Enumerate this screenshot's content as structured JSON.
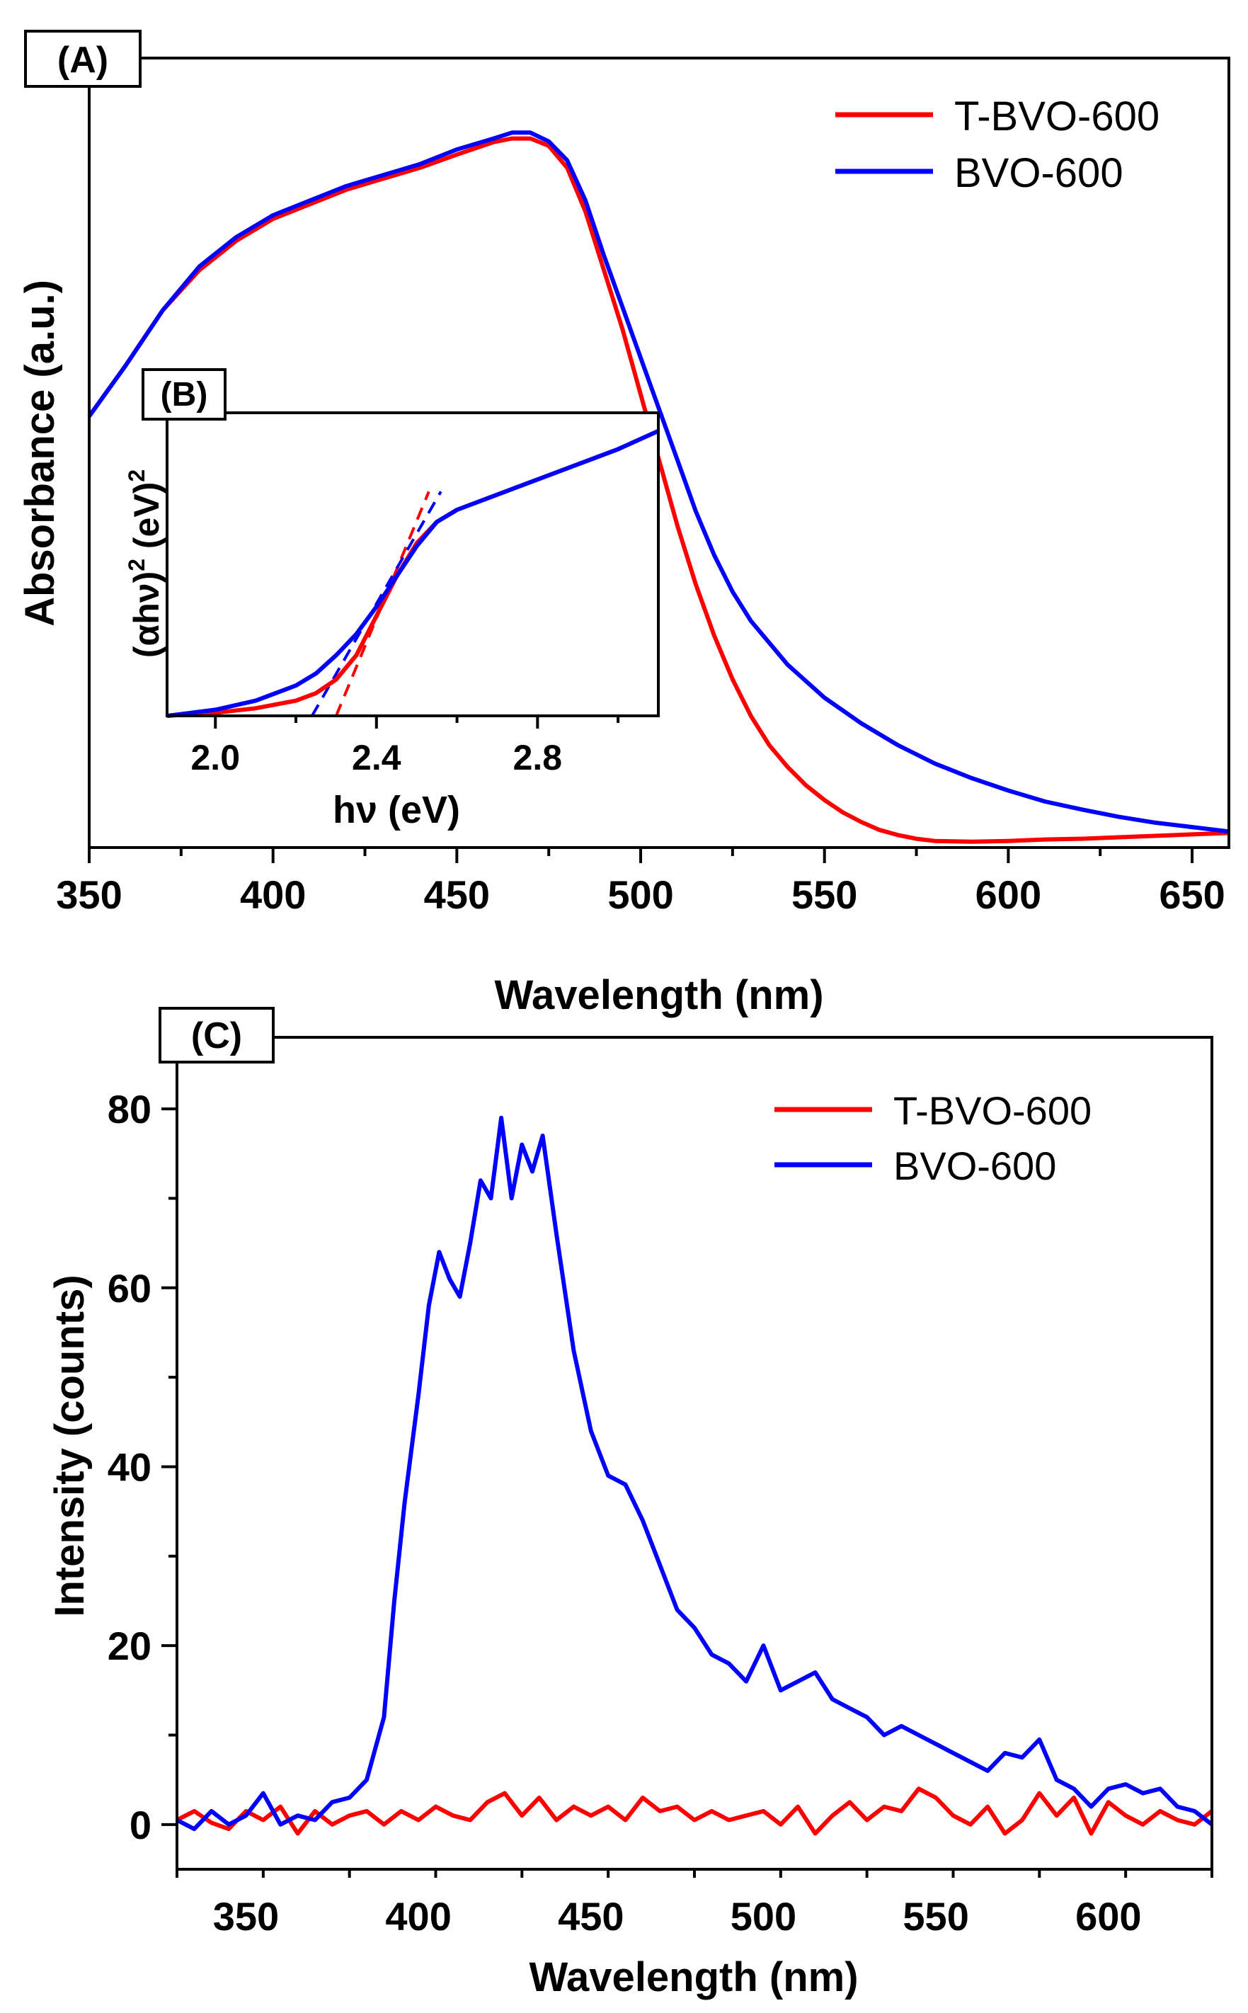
{
  "chart_data": [
    {
      "panel": "A",
      "type": "line",
      "panel_label": "(A)",
      "xlabel": "Wavelength (nm)",
      "ylabel": "Absorbance (a.u.)",
      "xlim": [
        350,
        660
      ],
      "ylim": [
        0,
        1.08
      ],
      "xticks": [
        350,
        400,
        450,
        500,
        550,
        600,
        650
      ],
      "legend_position": "top-right",
      "series": [
        {
          "name": "T-BVO-600",
          "color": "#ff0000",
          "x": [
            350,
            360,
            370,
            380,
            390,
            400,
            410,
            420,
            430,
            440,
            450,
            460,
            465,
            470,
            475,
            480,
            485,
            490,
            495,
            500,
            505,
            510,
            515,
            520,
            525,
            530,
            535,
            540,
            545,
            550,
            555,
            560,
            565,
            570,
            575,
            580,
            590,
            600,
            610,
            620,
            630,
            640,
            650,
            660
          ],
          "y": [
            0.59,
            0.66,
            0.735,
            0.79,
            0.83,
            0.86,
            0.88,
            0.9,
            0.915,
            0.93,
            0.948,
            0.965,
            0.97,
            0.97,
            0.96,
            0.93,
            0.87,
            0.79,
            0.71,
            0.62,
            0.53,
            0.44,
            0.36,
            0.29,
            0.23,
            0.18,
            0.14,
            0.11,
            0.085,
            0.065,
            0.048,
            0.035,
            0.024,
            0.017,
            0.012,
            0.009,
            0.008,
            0.009,
            0.011,
            0.012,
            0.014,
            0.016,
            0.018,
            0.02
          ]
        },
        {
          "name": "BVO-600",
          "color": "#0000ff",
          "x": [
            350,
            360,
            370,
            380,
            390,
            400,
            410,
            420,
            430,
            440,
            450,
            460,
            465,
            470,
            475,
            480,
            485,
            490,
            495,
            500,
            505,
            510,
            515,
            520,
            525,
            530,
            535,
            540,
            550,
            560,
            570,
            580,
            590,
            600,
            610,
            620,
            630,
            640,
            650,
            660
          ],
          "y": [
            0.59,
            0.66,
            0.735,
            0.795,
            0.835,
            0.865,
            0.885,
            0.905,
            0.92,
            0.935,
            0.955,
            0.97,
            0.978,
            0.978,
            0.966,
            0.94,
            0.885,
            0.81,
            0.74,
            0.67,
            0.6,
            0.53,
            0.46,
            0.4,
            0.35,
            0.31,
            0.28,
            0.25,
            0.205,
            0.17,
            0.14,
            0.115,
            0.095,
            0.078,
            0.063,
            0.052,
            0.042,
            0.034,
            0.028,
            0.022
          ]
        }
      ]
    },
    {
      "panel": "B",
      "type": "line",
      "inset_of": "A",
      "panel_label": "(B)",
      "xlabel": "hν (eV)",
      "ylabel_parts": [
        "(αhν)",
        "2",
        " (eV)",
        "2"
      ],
      "xlim": [
        1.88,
        3.1
      ],
      "ylim": [
        0,
        1
      ],
      "xticks": [
        2.0,
        2.4,
        2.8
      ],
      "xtick_labels": [
        "2.0",
        "2.4",
        "2.8"
      ],
      "series": [
        {
          "name": "T-BVO-600",
          "color": "#ff0000",
          "x": [
            1.88,
            2.0,
            2.1,
            2.2,
            2.25,
            2.3,
            2.35,
            2.4,
            2.45,
            2.5,
            2.55,
            2.6,
            2.7,
            2.8,
            2.9,
            3.0,
            3.1
          ],
          "y": [
            0.0,
            0.01,
            0.025,
            0.05,
            0.075,
            0.12,
            0.2,
            0.33,
            0.46,
            0.57,
            0.64,
            0.68,
            0.73,
            0.78,
            0.83,
            0.88,
            0.94
          ]
        },
        {
          "name": "BVO-600",
          "color": "#0000ff",
          "x": [
            1.88,
            2.0,
            2.1,
            2.2,
            2.25,
            2.3,
            2.35,
            2.4,
            2.45,
            2.5,
            2.55,
            2.6,
            2.7,
            2.8,
            2.9,
            3.0,
            3.1
          ],
          "y": [
            0.0,
            0.02,
            0.05,
            0.1,
            0.14,
            0.2,
            0.27,
            0.36,
            0.46,
            0.56,
            0.64,
            0.68,
            0.73,
            0.78,
            0.83,
            0.88,
            0.94
          ]
        }
      ],
      "tangent_lines": [
        {
          "series": "T-BVO-600",
          "color": "#ff0000",
          "x": [
            2.3,
            2.53
          ],
          "y": [
            0.0,
            0.74
          ]
        },
        {
          "series": "BVO-600",
          "color": "#0000ff",
          "x": [
            2.24,
            2.56
          ],
          "y": [
            0.0,
            0.74
          ]
        }
      ]
    },
    {
      "panel": "C",
      "type": "line",
      "panel_label": "(C)",
      "xlabel": "Wavelength (nm)",
      "ylabel": "Intensity (counts)",
      "xlim": [
        330,
        630
      ],
      "ylim": [
        -5,
        88
      ],
      "xticks": [
        350,
        400,
        450,
        500,
        550,
        600
      ],
      "yticks": [
        0,
        20,
        40,
        60,
        80
      ],
      "legend_position": "top-right",
      "series": [
        {
          "name": "T-BVO-600",
          "color": "#ff0000",
          "x": [
            330,
            335,
            340,
            345,
            350,
            355,
            360,
            365,
            370,
            375,
            380,
            385,
            390,
            395,
            400,
            405,
            410,
            415,
            420,
            425,
            430,
            435,
            440,
            445,
            450,
            455,
            460,
            465,
            470,
            475,
            480,
            485,
            490,
            495,
            500,
            505,
            510,
            515,
            520,
            525,
            530,
            535,
            540,
            545,
            550,
            555,
            560,
            565,
            570,
            575,
            580,
            585,
            590,
            595,
            600,
            605,
            610,
            615,
            620,
            625,
            630
          ],
          "y": [
            0.5,
            1.5,
            0.2,
            -0.5,
            1.5,
            0.5,
            2.0,
            -1.0,
            1.5,
            0.0,
            1.0,
            1.5,
            0.0,
            1.5,
            0.5,
            2.0,
            1.0,
            0.5,
            2.5,
            3.5,
            1.0,
            3.0,
            0.5,
            2.0,
            1.0,
            2.0,
            0.5,
            3.0,
            1.5,
            2.0,
            0.5,
            1.5,
            0.5,
            1.0,
            1.5,
            0.0,
            2.0,
            -1.0,
            1.0,
            2.5,
            0.5,
            2.0,
            1.5,
            4.0,
            3.0,
            1.0,
            0.0,
            2.0,
            -1.0,
            0.5,
            3.5,
            1.0,
            3.0,
            -1.0,
            2.5,
            1.0,
            0.0,
            1.5,
            0.5,
            0.0,
            1.5
          ]
        },
        {
          "name": "BVO-600",
          "color": "#0000ff",
          "x": [
            330,
            335,
            340,
            345,
            350,
            355,
            360,
            365,
            370,
            375,
            380,
            385,
            390,
            393,
            396,
            400,
            403,
            406,
            409,
            412,
            415,
            418,
            421,
            424,
            427,
            430,
            433,
            436,
            440,
            445,
            450,
            455,
            460,
            465,
            470,
            475,
            480,
            485,
            490,
            495,
            500,
            505,
            510,
            515,
            520,
            525,
            530,
            535,
            540,
            545,
            550,
            555,
            560,
            565,
            570,
            575,
            580,
            585,
            590,
            595,
            600,
            605,
            610,
            615,
            620,
            625,
            630
          ],
          "y": [
            0.5,
            -0.5,
            1.5,
            0.0,
            1.0,
            3.5,
            0.0,
            1.0,
            0.5,
            2.5,
            3.0,
            5.0,
            12.0,
            25.0,
            36.0,
            48.0,
            58.0,
            64.0,
            61.0,
            59.0,
            65.0,
            72.0,
            70.0,
            79.0,
            70.0,
            76.0,
            73.0,
            77.0,
            66.0,
            53.0,
            44.0,
            39.0,
            38.0,
            34.0,
            29.0,
            24.0,
            22.0,
            19.0,
            18.0,
            16.0,
            20.0,
            15.0,
            16.0,
            17.0,
            14.0,
            13.0,
            12.0,
            10.0,
            11.0,
            10.0,
            9.0,
            8.0,
            7.0,
            6.0,
            8.0,
            7.5,
            9.5,
            5.0,
            4.0,
            2.0,
            4.0,
            4.5,
            3.5,
            4.0,
            2.0,
            1.5,
            0.0
          ]
        }
      ]
    }
  ]
}
